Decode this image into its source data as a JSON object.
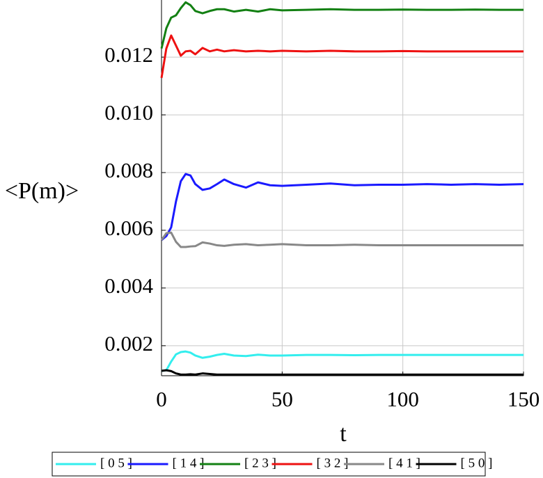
{
  "chart_data": {
    "type": "line",
    "xlabel": "t",
    "ylabel": "<P(m)>",
    "x": [
      0,
      2,
      4,
      6,
      8,
      10,
      12,
      14,
      17,
      20,
      23,
      26,
      30,
      35,
      40,
      45,
      50,
      60,
      70,
      80,
      90,
      100,
      110,
      120,
      130,
      140,
      150
    ],
    "series": [
      {
        "name": "[ 0 5 ]",
        "color": "#33eeee",
        "values": [
          0.00113,
          0.00115,
          0.00145,
          0.0017,
          0.00178,
          0.0018,
          0.00176,
          0.00166,
          0.00158,
          0.00162,
          0.00168,
          0.00172,
          0.00166,
          0.00164,
          0.00169,
          0.00166,
          0.00166,
          0.00168,
          0.00168,
          0.00167,
          0.00168,
          0.00168,
          0.00168,
          0.00168,
          0.00168,
          0.00168,
          0.00168
        ]
      },
      {
        "name": "[ 1 4 ]",
        "color": "#1a1aff",
        "values": [
          0.00566,
          0.0058,
          0.0061,
          0.007,
          0.0077,
          0.00795,
          0.0079,
          0.0076,
          0.0074,
          0.00745,
          0.0076,
          0.00776,
          0.0076,
          0.00748,
          0.00766,
          0.00756,
          0.00754,
          0.00758,
          0.00762,
          0.00756,
          0.00758,
          0.00758,
          0.0076,
          0.00758,
          0.0076,
          0.00758,
          0.0076
        ]
      },
      {
        "name": "[ 2 3 ]",
        "color": "#138013",
        "values": [
          0.0123,
          0.013,
          0.01337,
          0.01345,
          0.0137,
          0.0139,
          0.0138,
          0.0136,
          0.01352,
          0.0136,
          0.01366,
          0.01366,
          0.01358,
          0.01364,
          0.01358,
          0.01366,
          0.01362,
          0.01364,
          0.01366,
          0.01364,
          0.01364,
          0.01365,
          0.01364,
          0.01364,
          0.01365,
          0.01364,
          0.01364
        ]
      },
      {
        "name": "[ 3 2 ]",
        "color": "#ee1111",
        "values": [
          0.01128,
          0.0123,
          0.01275,
          0.0124,
          0.01205,
          0.0122,
          0.01222,
          0.0121,
          0.01232,
          0.0122,
          0.01226,
          0.0122,
          0.01224,
          0.0122,
          0.01222,
          0.0122,
          0.01222,
          0.0122,
          0.01222,
          0.0122,
          0.0122,
          0.01221,
          0.0122,
          0.0122,
          0.0122,
          0.0122,
          0.0122
        ]
      },
      {
        "name": "[ 4 1 ]",
        "color": "#888888",
        "values": [
          0.00566,
          0.0059,
          0.00592,
          0.0056,
          0.00542,
          0.00542,
          0.00544,
          0.00545,
          0.00558,
          0.00554,
          0.00548,
          0.00546,
          0.0055,
          0.00552,
          0.00548,
          0.0055,
          0.00552,
          0.00548,
          0.00548,
          0.0055,
          0.00548,
          0.00548,
          0.00548,
          0.00548,
          0.00548,
          0.00548,
          0.00548
        ]
      },
      {
        "name": "[ 5 0 ]",
        "color": "#000000",
        "values": [
          0.00113,
          0.00115,
          0.00112,
          0.00104,
          0.001,
          0.001,
          0.00101,
          0.001,
          0.00104,
          0.00102,
          0.001,
          0.001,
          0.001,
          0.001,
          0.001,
          0.001,
          0.001,
          0.001,
          0.001,
          0.001,
          0.001,
          0.001,
          0.001,
          0.001,
          0.001,
          0.001,
          0.001
        ]
      }
    ],
    "xlim": [
      0,
      150
    ],
    "xticks": [
      0,
      50,
      100,
      150
    ],
    "ylim": [
      0.00096,
      0.01398
    ],
    "yticks": [
      0.002,
      0.004,
      0.006,
      0.008,
      {
        "value": 0.01,
        "label": "0.010"
      },
      0.012
    ],
    "grid": true
  }
}
